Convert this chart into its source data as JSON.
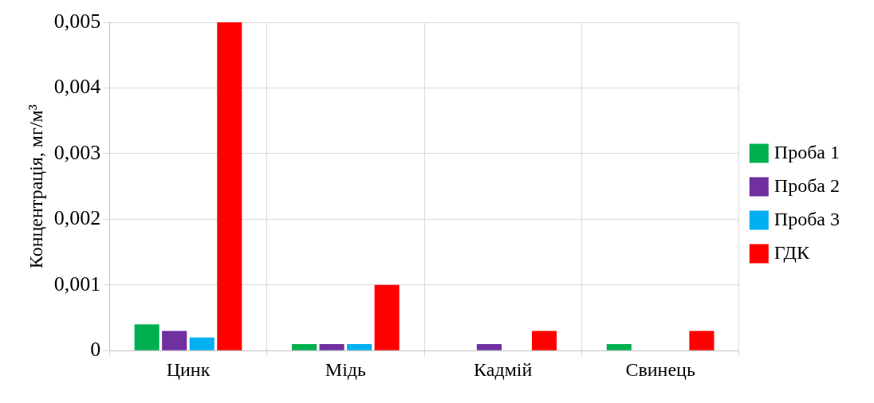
{
  "chart_data": {
    "type": "bar",
    "ylabel": "Концентрація, мг/м³",
    "categories": [
      "Цинк",
      "Мідь",
      "Кадмій",
      "Свинець"
    ],
    "series": [
      {
        "name": "Проба 1",
        "color": "#00b050",
        "values": [
          0.0004,
          0.0001,
          null,
          0.0001
        ]
      },
      {
        "name": "Проба 2",
        "color": "#7030a0",
        "values": [
          0.0003,
          0.0001,
          0.0001,
          null
        ]
      },
      {
        "name": "Проба 3",
        "color": "#00b0f0",
        "values": [
          0.0002,
          0.0001,
          null,
          null
        ]
      },
      {
        "name": "ГДК",
        "color": "#ff0000",
        "values": [
          0.005,
          0.001,
          0.0003,
          0.0003
        ]
      }
    ],
    "ylim": [
      0,
      0.005
    ],
    "yticks": [
      0,
      {
        "value": 0.001,
        "label": "0,001"
      },
      {
        "value": 0.002,
        "label": "0,002"
      },
      {
        "value": 0.003,
        "label": "0,003"
      },
      {
        "value": 0.004,
        "label": "0,004"
      },
      {
        "value": 0.005,
        "label": "0,005"
      }
    ],
    "grid": true,
    "legend": "right"
  }
}
